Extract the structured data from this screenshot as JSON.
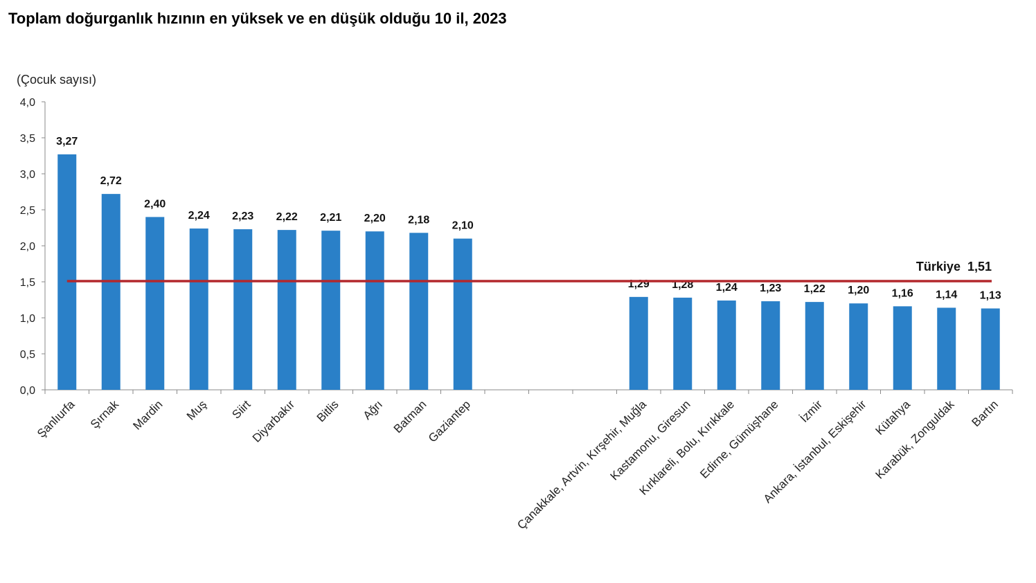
{
  "title": "Toplam doğurganlık hızının en yüksek ve en düşük olduğu 10 il, 2023",
  "chart_data": {
    "type": "bar",
    "title": "Toplam doğurganlık hızının en yüksek ve en düşük olduğu 10 il, 2023",
    "ylabel": "(Çocuk sayısı)",
    "xlabel": "",
    "ylim": [
      0,
      4
    ],
    "yticks": [
      "0,0",
      "0,5",
      "1,0",
      "1,5",
      "2,0",
      "2,5",
      "3,0",
      "3,5",
      "4,0"
    ],
    "grid": false,
    "categories": [
      "Şanlıurfa",
      "Şırnak",
      "Mardin",
      "Muş",
      "Siirt",
      "Diyarbakır",
      "Bitlis",
      "Ağrı",
      "Batman",
      "Gaziantep",
      "",
      "",
      "",
      "Çanakkale, Artvin, Kırşehir, Muğla",
      "Kastamonu, Giresun",
      "Kırklareli, Bolu, Kırıkkale",
      "Edirne, Gümüşhane",
      "İzmir",
      "Ankara, İstanbul, Eskişehir",
      "Kütahya",
      "Karabük, Zonguldak",
      "Bartın"
    ],
    "values": [
      3.27,
      2.72,
      2.4,
      2.24,
      2.23,
      2.22,
      2.21,
      2.2,
      2.18,
      2.1,
      null,
      null,
      null,
      1.29,
      1.28,
      1.24,
      1.23,
      1.22,
      1.2,
      1.16,
      1.14,
      1.13
    ],
    "data_labels": [
      "3,27",
      "2,72",
      "2,40",
      "2,24",
      "2,23",
      "2,22",
      "2,21",
      "2,20",
      "2,18",
      "2,10",
      "",
      "",
      "",
      "1,29",
      "1,28",
      "1,24",
      "1,23",
      "1,22",
      "1,20",
      "1,16",
      "1,14",
      "1,13"
    ],
    "bar_color": "#2a80c8",
    "reference_line": {
      "label": "Türkiye  1,51",
      "value": 1.51,
      "color": "#b3282d"
    }
  }
}
